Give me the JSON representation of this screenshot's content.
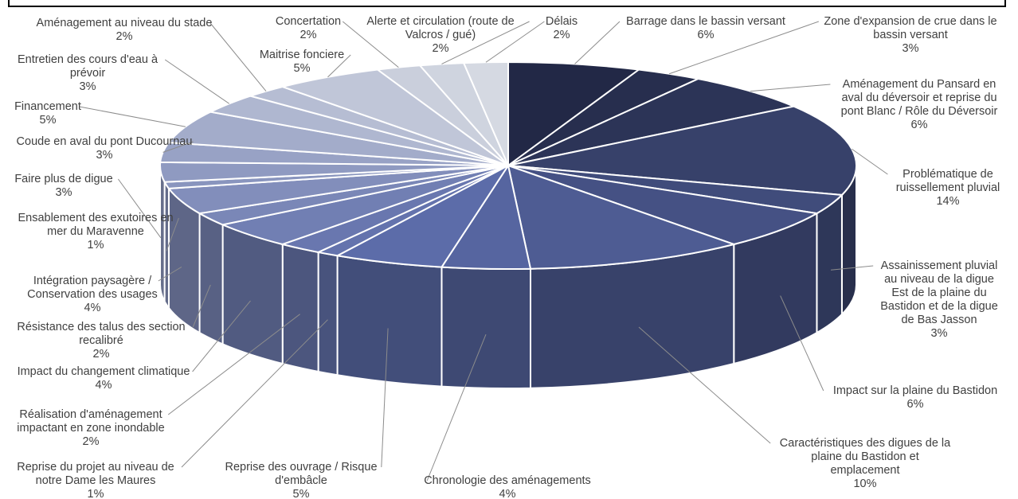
{
  "chart_data": {
    "type": "pie",
    "style": "3d-exploded-none",
    "slices": [
      {
        "label": "Barrage dans le bassin versant",
        "value": 6,
        "value_text": "6%"
      },
      {
        "label": "Zone d'expansion de crue dans le bassin versant",
        "value": 3,
        "value_text": "3%"
      },
      {
        "label": "Aménagement du Pansard en aval du déversoir et reprise du pont Blanc / Rôle du Déversoir",
        "value": 6,
        "value_text": "6%"
      },
      {
        "label": "Problématique de ruissellement pluvial",
        "value": 14,
        "value_text": "14%"
      },
      {
        "label": "Assainissement pluvial au niveau de la digue Est de la plaine du Bastidon et de la digue de Bas Jasson",
        "value": 3,
        "value_text": "3%"
      },
      {
        "label": "Impact sur la plaine du Bastidon",
        "value": 6,
        "value_text": "6%"
      },
      {
        "label": "Caractéristiques des digues de la plaine du Bastidon et emplacement",
        "value": 10,
        "value_text": "10%"
      },
      {
        "label": "Chronologie des aménagements",
        "value": 4,
        "value_text": "4%"
      },
      {
        "label": "Reprise des ouvrage / Risque d'embâcle",
        "value": 5,
        "value_text": "5%"
      },
      {
        "label": "Reprise du projet au niveau de notre Dame les Maures",
        "value": 1,
        "value_text": "1%"
      },
      {
        "label": "Réalisation d'aménagement impactant en zone inondable",
        "value": 2,
        "value_text": "2%"
      },
      {
        "label": "Impact du changement climatique",
        "value": 4,
        "value_text": "4%"
      },
      {
        "label": "Résistance des talus des section recalibré",
        "value": 2,
        "value_text": "2%"
      },
      {
        "label": "Intégration paysagère / Conservation des usages",
        "value": 4,
        "value_text": "4%"
      },
      {
        "label": "Ensablement des  exutoires en mer du Maravenne",
        "value": 1,
        "value_text": "1%"
      },
      {
        "label": "Faire plus de digue",
        "value": 3,
        "value_text": "3%"
      },
      {
        "label": "Coude en aval du pont Ducournau",
        "value": 3,
        "value_text": "3%"
      },
      {
        "label": "Financement",
        "value": 5,
        "value_text": "5%"
      },
      {
        "label": "Entretien des cours d'eau à prévoir",
        "value": 3,
        "value_text": "3%"
      },
      {
        "label": "Aménagement au niveau du stade",
        "value": 2,
        "value_text": "2%"
      },
      {
        "label": "Maitrise fonciere",
        "value": 5,
        "value_text": "5%"
      },
      {
        "label": "Concertation",
        "value": 2,
        "value_text": "2%"
      },
      {
        "label": "Alerte et circulation (route de Valcros / gué)",
        "value": 2,
        "value_text": "2%"
      },
      {
        "label": "Délais",
        "value": 2,
        "value_text": "2%"
      }
    ],
    "colors": {
      "dark_navy": "#1f2440",
      "mid_blue": "#5a6aa8",
      "light_gray": "#d8dce3",
      "separator": "#ffffff",
      "label_text": "#404040",
      "leader_line": "#8c8c8c"
    }
  }
}
